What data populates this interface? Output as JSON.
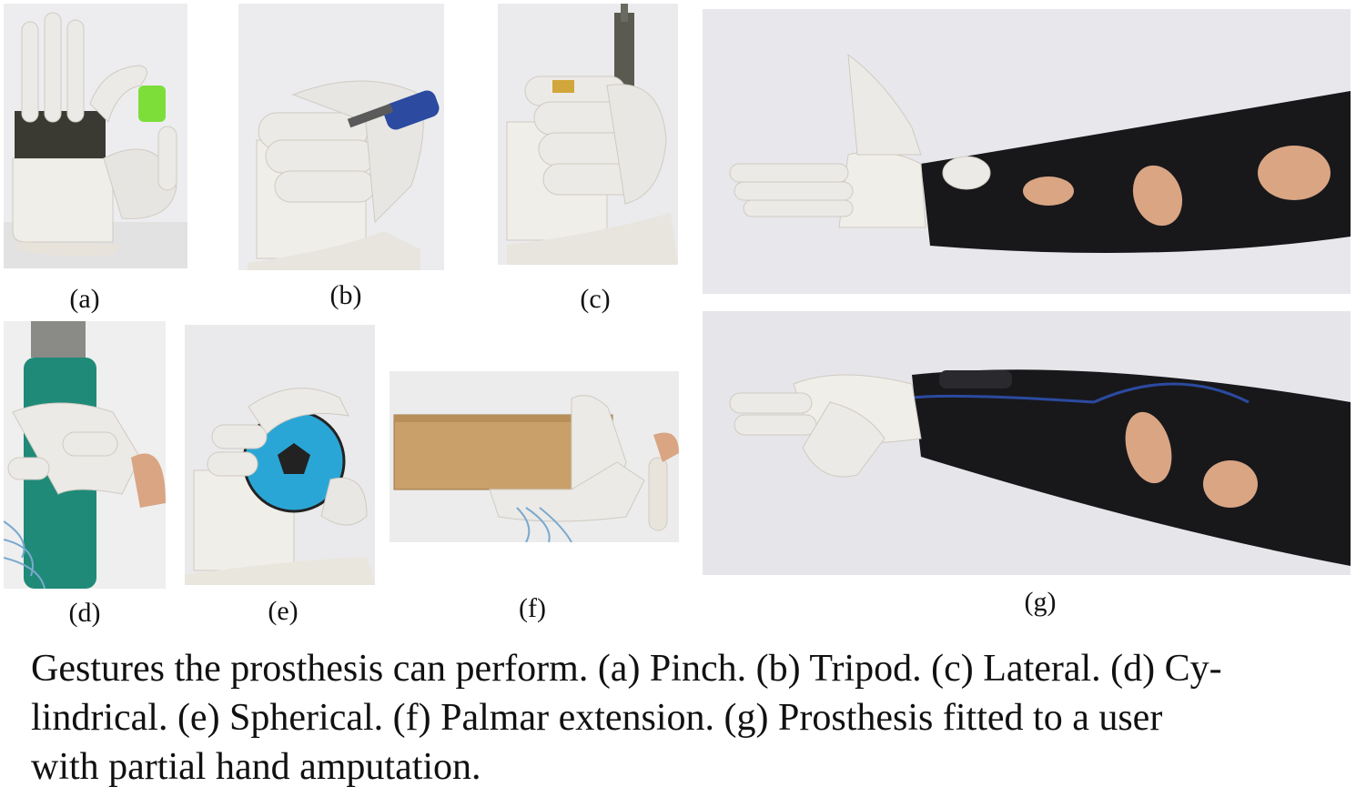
{
  "figure": {
    "labels": {
      "a": "(a)",
      "b": "(b)",
      "c": "(c)",
      "d": "(d)",
      "e": "(e)",
      "f": "(f)",
      "g": "(g)"
    },
    "caption": "Gestures the prosthesis can perform. (a) Pinch. (b) Tripod. (c) Lateral. (d) Cy-\nlindrical. (e) Spherical. (f) Palmar extension. (g) Prosthesis fitted to a user\nwith partial hand amputation.",
    "colors": {
      "background": "#e9e9ec",
      "hand": "#eceae6",
      "pcb": "#3a3a32",
      "bottle_cap": "#7dde3a",
      "pen_cap": "#2b4aa0",
      "bottle": "#1f8a78",
      "ball": "#2aa6d6",
      "box": "#c9a06a",
      "sleeve": "#18181b",
      "skin": "#d9a583"
    }
  }
}
